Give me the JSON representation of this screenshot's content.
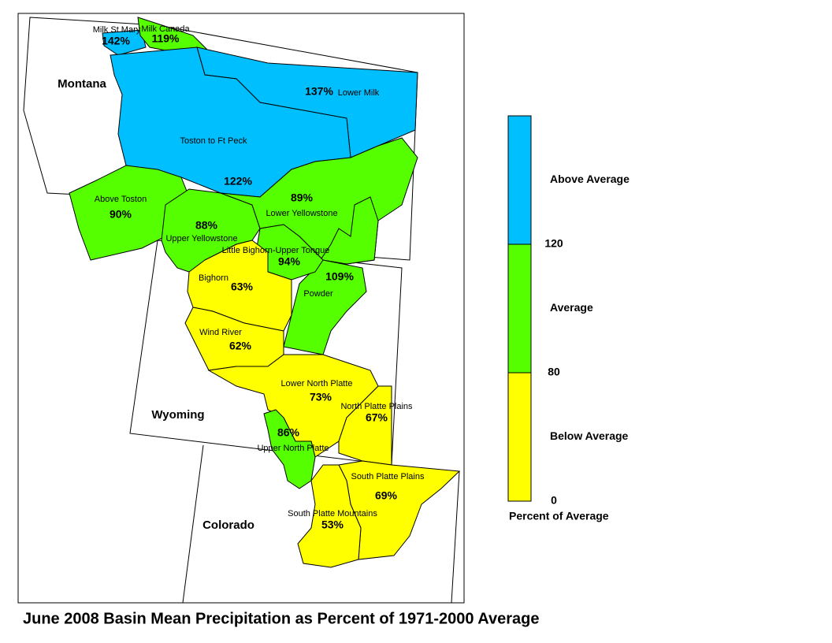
{
  "title": "June 2008 Basin Mean Precipitation as Percent of 1971-2000 Average",
  "states": [
    "Montana",
    "Wyoming",
    "Colorado"
  ],
  "basins": [
    {
      "name": "Milk St Mary",
      "label": "142%",
      "color": "#00bfff"
    },
    {
      "name": "Milk Canada",
      "label": "119%",
      "color": "#55ff00"
    },
    {
      "name": "Lower Milk",
      "label": "137%",
      "color": "#00bfff"
    },
    {
      "name": "Toston to Ft Peck",
      "label": "122%",
      "color": "#00bfff"
    },
    {
      "name": "Above Toston",
      "label": "90%",
      "color": "#55ff00"
    },
    {
      "name": "Upper Yellowstone",
      "label": "88%",
      "color": "#55ff00"
    },
    {
      "name": "Lower Yellowstone",
      "label": "89%",
      "color": "#55ff00"
    },
    {
      "name": "Powder",
      "label": "109%",
      "color": "#55ff00"
    },
    {
      "name": "Little Bighorn-Upper Tongue",
      "label": "94%",
      "color": "#55ff00"
    },
    {
      "name": "Bighorn",
      "label": "63%",
      "color": "#ffff00"
    },
    {
      "name": "Wind River",
      "label": "62%",
      "color": "#ffff00"
    },
    {
      "name": "Lower North Platte",
      "label": "73%",
      "color": "#ffff00"
    },
    {
      "name": "North Platte Plains",
      "label": "67%",
      "color": "#ffff00"
    },
    {
      "name": "Upper North Platte",
      "label": "86%",
      "color": "#55ff00"
    },
    {
      "name": "South Platte Plains",
      "label": "69%",
      "color": "#ffff00"
    },
    {
      "name": "South Platte Mountains",
      "label": "53%",
      "color": "#ffff00"
    }
  ],
  "legend": {
    "classes": [
      {
        "label": "Above Average",
        "color": "#00bfff"
      },
      {
        "label": "Average",
        "color": "#55ff00"
      },
      {
        "label": "Below Average",
        "color": "#ffff00"
      }
    ],
    "breaks": [
      120,
      80,
      0
    ],
    "caption": "Percent of Average"
  }
}
